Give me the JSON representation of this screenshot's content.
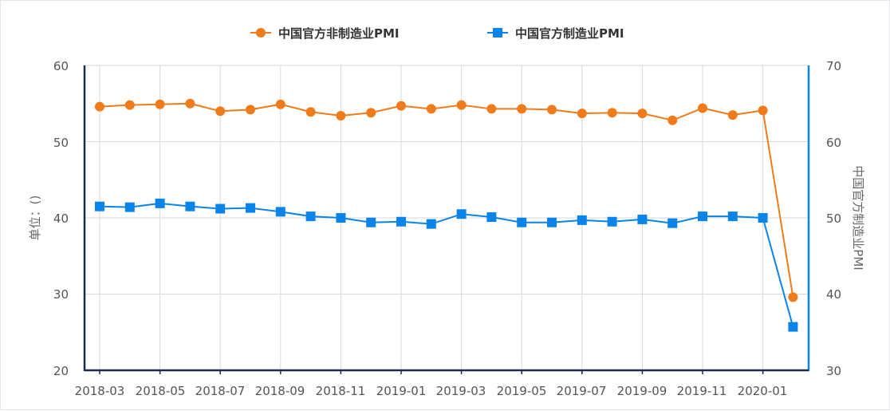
{
  "chart_data": {
    "type": "line",
    "x": [
      "2018-03",
      "2018-04",
      "2018-05",
      "2018-06",
      "2018-07",
      "2018-08",
      "2018-09",
      "2018-10",
      "2018-11",
      "2018-12",
      "2019-01",
      "2019-02",
      "2019-03",
      "2019-04",
      "2019-05",
      "2019-06",
      "2019-07",
      "2019-08",
      "2019-09",
      "2019-10",
      "2019-11",
      "2019-12",
      "2020-01",
      "2020-02"
    ],
    "xtick_labels": [
      "2018-03",
      "2018-05",
      "2018-07",
      "2018-09",
      "2018-11",
      "2019-01",
      "2019-03",
      "2019-05",
      "2019-07",
      "2019-09",
      "2019-11",
      "2020-01"
    ],
    "series": [
      {
        "name": "中国官方非制造业PMI",
        "axis": "left",
        "color": "#f07b1a",
        "marker": "circle",
        "values": [
          54.6,
          54.8,
          54.9,
          55.0,
          54.0,
          54.2,
          54.9,
          53.9,
          53.4,
          53.8,
          54.7,
          54.3,
          54.8,
          54.3,
          54.3,
          54.2,
          53.7,
          53.8,
          53.7,
          52.8,
          54.4,
          53.5,
          54.1,
          29.6
        ]
      },
      {
        "name": "中国官方制造业PMI",
        "axis": "right",
        "color": "#0a84e8",
        "marker": "square",
        "values": [
          51.5,
          51.4,
          51.9,
          51.5,
          51.2,
          51.3,
          50.8,
          50.2,
          50.0,
          49.4,
          49.5,
          49.2,
          50.5,
          50.1,
          49.4,
          49.4,
          49.7,
          49.5,
          49.8,
          49.3,
          50.2,
          50.2,
          50.0,
          35.7
        ]
      }
    ],
    "ylabel": "单位：()",
    "ylim": [
      20,
      60
    ],
    "yticks": [
      "60",
      "50",
      "40",
      "30",
      "20"
    ],
    "y2label": "中国官方制造业PMI",
    "y2lim": [
      30,
      70
    ],
    "y2ticks": [
      "70",
      "60",
      "50",
      "40",
      "30"
    ],
    "left_axis_color": "#1a2a4f",
    "right_axis_color": "#0a84e8",
    "grid": true,
    "legend_position": "top-center"
  }
}
